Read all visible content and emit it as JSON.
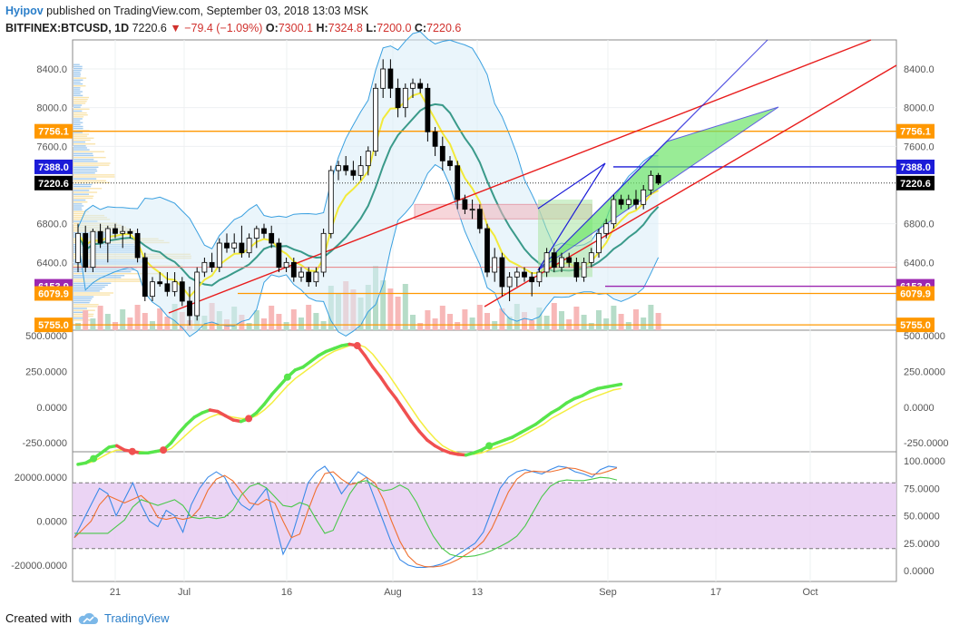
{
  "header": {
    "author": "Hyipov",
    "published": "published on TradingView.com, September 03, 2018 13:03 MSK",
    "symbol": "BITFINEX:BTCUSD, 1D",
    "last": "7220.6",
    "change": "−79.4 (−1.09%)",
    "o_label": "O:",
    "o": "7300.1",
    "h_label": "H:",
    "h": "7324.8",
    "l_label": "L:",
    "l": "7200.0",
    "c_label": "C:",
    "c": "7220.6"
  },
  "footer": {
    "created_with": "Created with",
    "brand": "TradingView"
  },
  "colors": {
    "up": "#ffffff",
    "down": "#000000",
    "orange": "#ff9800",
    "blue": "#1c1cd8",
    "purple": "#9c27b0",
    "red": "#e81c1c",
    "green": "#57e54b",
    "yellow": "#f4f020"
  },
  "chart_data": [
    {
      "type": "candlestick",
      "title": "BITFINEX:BTCUSD, 1D",
      "ylim": [
        5700,
        8700
      ],
      "y_ticks": [
        "8400.0",
        "8000.0",
        "7600.0",
        "6800.0",
        "6400.0"
      ],
      "x_ticks": [
        "21",
        "Jul",
        "16",
        "Aug",
        "13",
        "Sep",
        "17",
        "Oct"
      ],
      "price_labels": [
        {
          "value": 7756.1,
          "text": "7756.1",
          "color": "#ff9800"
        },
        {
          "value": 7388.0,
          "text": "7388.0",
          "color": "#1c1cd8"
        },
        {
          "value": 7220.6,
          "text": "7220.6",
          "color": "#000000"
        },
        {
          "value": 6153.9,
          "text": "6153.9",
          "color": "#9c27b0"
        },
        {
          "value": 6079.9,
          "text": "6079.9",
          "color": "#ff9800"
        },
        {
          "value": 5755.0,
          "text": "5755.0",
          "color": "#ff9800"
        }
      ],
      "candles": [
        {
          "o": 6400,
          "h": 6800,
          "l": 6300,
          "c": 6700
        },
        {
          "o": 6700,
          "h": 6780,
          "l": 6300,
          "c": 6350
        },
        {
          "o": 6350,
          "h": 6750,
          "l": 6300,
          "c": 6720
        },
        {
          "o": 6720,
          "h": 6800,
          "l": 6550,
          "c": 6600
        },
        {
          "o": 6600,
          "h": 6780,
          "l": 6400,
          "c": 6750
        },
        {
          "o": 6750,
          "h": 6800,
          "l": 6650,
          "c": 6700
        },
        {
          "o": 6700,
          "h": 6780,
          "l": 6550,
          "c": 6720
        },
        {
          "o": 6720,
          "h": 6750,
          "l": 6650,
          "c": 6700
        },
        {
          "o": 6700,
          "h": 6750,
          "l": 6400,
          "c": 6450
        },
        {
          "o": 6450,
          "h": 6500,
          "l": 6000,
          "c": 6050
        },
        {
          "o": 6050,
          "h": 6250,
          "l": 6000,
          "c": 6200
        },
        {
          "o": 6200,
          "h": 6300,
          "l": 6150,
          "c": 6180
        },
        {
          "o": 6180,
          "h": 6300,
          "l": 6050,
          "c": 6100
        },
        {
          "o": 6100,
          "h": 6300,
          "l": 6050,
          "c": 6200
        },
        {
          "o": 6200,
          "h": 6250,
          "l": 5950,
          "c": 6000
        },
        {
          "o": 6000,
          "h": 6150,
          "l": 5750,
          "c": 5850
        },
        {
          "o": 5850,
          "h": 6350,
          "l": 5800,
          "c": 6300
        },
        {
          "o": 6300,
          "h": 6450,
          "l": 6250,
          "c": 6400
        },
        {
          "o": 6400,
          "h": 6500,
          "l": 6300,
          "c": 6350
        },
        {
          "o": 6350,
          "h": 6650,
          "l": 6300,
          "c": 6600
        },
        {
          "o": 6600,
          "h": 6700,
          "l": 6500,
          "c": 6550
        },
        {
          "o": 6550,
          "h": 6700,
          "l": 6500,
          "c": 6600
        },
        {
          "o": 6600,
          "h": 6780,
          "l": 6450,
          "c": 6500
        },
        {
          "o": 6500,
          "h": 6700,
          "l": 6450,
          "c": 6650
        },
        {
          "o": 6650,
          "h": 6780,
          "l": 6550,
          "c": 6750
        },
        {
          "o": 6750,
          "h": 6800,
          "l": 6650,
          "c": 6700
        },
        {
          "o": 6700,
          "h": 6780,
          "l": 6550,
          "c": 6600
        },
        {
          "o": 6600,
          "h": 6650,
          "l": 6300,
          "c": 6350
        },
        {
          "o": 6350,
          "h": 6450,
          "l": 6300,
          "c": 6400
        },
        {
          "o": 6400,
          "h": 6450,
          "l": 6200,
          "c": 6250
        },
        {
          "o": 6250,
          "h": 6350,
          "l": 6200,
          "c": 6300
        },
        {
          "o": 6300,
          "h": 6350,
          "l": 6150,
          "c": 6200
        },
        {
          "o": 6200,
          "h": 6350,
          "l": 6150,
          "c": 6300
        },
        {
          "o": 6300,
          "h": 6750,
          "l": 6250,
          "c": 6700
        },
        {
          "o": 6700,
          "h": 7400,
          "l": 6650,
          "c": 7350
        },
        {
          "o": 7350,
          "h": 7450,
          "l": 7250,
          "c": 7400
        },
        {
          "o": 7400,
          "h": 7500,
          "l": 7300,
          "c": 7350
        },
        {
          "o": 7350,
          "h": 7450,
          "l": 7250,
          "c": 7300
        },
        {
          "o": 7300,
          "h": 7500,
          "l": 7250,
          "c": 7400
        },
        {
          "o": 7400,
          "h": 7600,
          "l": 7300,
          "c": 7550
        },
        {
          "o": 7550,
          "h": 8250,
          "l": 7500,
          "c": 8200
        },
        {
          "o": 8200,
          "h": 8500,
          "l": 8100,
          "c": 8400
        },
        {
          "o": 8400,
          "h": 8500,
          "l": 8100,
          "c": 8200
        },
        {
          "o": 8200,
          "h": 8300,
          "l": 7900,
          "c": 8000
        },
        {
          "o": 8000,
          "h": 8250,
          "l": 7900,
          "c": 8200
        },
        {
          "o": 8200,
          "h": 8300,
          "l": 8100,
          "c": 8250
        },
        {
          "o": 8250,
          "h": 8300,
          "l": 8150,
          "c": 8200
        },
        {
          "o": 8200,
          "h": 8250,
          "l": 7650,
          "c": 7750
        },
        {
          "o": 7750,
          "h": 7800,
          "l": 7500,
          "c": 7600
        },
        {
          "o": 7600,
          "h": 7700,
          "l": 7350,
          "c": 7450
        },
        {
          "o": 7450,
          "h": 7500,
          "l": 7350,
          "c": 7400
        },
        {
          "o": 7400,
          "h": 7450,
          "l": 6950,
          "c": 7050
        },
        {
          "o": 7050,
          "h": 7100,
          "l": 6900,
          "c": 6950
        },
        {
          "o": 6950,
          "h": 7050,
          "l": 6850,
          "c": 6950
        },
        {
          "o": 6950,
          "h": 7000,
          "l": 6700,
          "c": 6750
        },
        {
          "o": 6750,
          "h": 6800,
          "l": 6250,
          "c": 6300
        },
        {
          "o": 6300,
          "h": 6550,
          "l": 6200,
          "c": 6450
        },
        {
          "o": 6450,
          "h": 6500,
          "l": 6050,
          "c": 6150
        },
        {
          "o": 6150,
          "h": 6300,
          "l": 6000,
          "c": 6250
        },
        {
          "o": 6250,
          "h": 6350,
          "l": 6150,
          "c": 6300
        },
        {
          "o": 6300,
          "h": 6350,
          "l": 6200,
          "c": 6250
        },
        {
          "o": 6250,
          "h": 6300,
          "l": 6050,
          "c": 6200
        },
        {
          "o": 6200,
          "h": 6350,
          "l": 6150,
          "c": 6300
        },
        {
          "o": 6300,
          "h": 6550,
          "l": 6250,
          "c": 6500
        },
        {
          "o": 6500,
          "h": 6550,
          "l": 6300,
          "c": 6350
        },
        {
          "o": 6350,
          "h": 6500,
          "l": 6300,
          "c": 6450
        },
        {
          "o": 6450,
          "h": 6500,
          "l": 6350,
          "c": 6400
        },
        {
          "o": 6400,
          "h": 6450,
          "l": 6200,
          "c": 6250
        },
        {
          "o": 6250,
          "h": 6450,
          "l": 6200,
          "c": 6400
        },
        {
          "o": 6400,
          "h": 6550,
          "l": 6350,
          "c": 6500
        },
        {
          "o": 6500,
          "h": 6750,
          "l": 6450,
          "c": 6700
        },
        {
          "o": 6700,
          "h": 6850,
          "l": 6650,
          "c": 6800
        },
        {
          "o": 6800,
          "h": 7100,
          "l": 6750,
          "c": 7050
        },
        {
          "o": 7050,
          "h": 7100,
          "l": 6950,
          "c": 7000
        },
        {
          "o": 7000,
          "h": 7100,
          "l": 6950,
          "c": 7050
        },
        {
          "o": 7050,
          "h": 7150,
          "l": 6950,
          "c": 7000
        },
        {
          "o": 7000,
          "h": 7200,
          "l": 6950,
          "c": 7150
        },
        {
          "o": 7150,
          "h": 7350,
          "l": 7100,
          "c": 7300
        },
        {
          "o": 7300,
          "h": 7325,
          "l": 7200,
          "c": 7220
        }
      ]
    },
    {
      "type": "line",
      "ylim": [
        -350,
        500
      ],
      "y_ticks": [
        "500.0000",
        "250.0000",
        "0.0000",
        "-250.0000"
      ],
      "series": [
        {
          "values": [
            -400,
            -390,
            -360,
            -320,
            -280,
            -270,
            -300,
            -310,
            -320,
            -320,
            -310,
            -300,
            -250,
            -180,
            -120,
            -70,
            -40,
            -20,
            -30,
            -60,
            -90,
            -100,
            -80,
            -40,
            20,
            90,
            150,
            210,
            260,
            280,
            320,
            360,
            390,
            410,
            430,
            440,
            430,
            360,
            280,
            210,
            130,
            60,
            -20,
            -100,
            -170,
            -230,
            -270,
            -300,
            -320,
            -330,
            -335,
            -320,
            -300,
            -270,
            -250,
            -230,
            -210,
            -180,
            -150,
            -120,
            -80,
            -40,
            -10,
            30,
            60,
            80,
            110,
            130,
            140,
            150,
            160
          ]
        },
        {
          "values": [
            -400,
            -395,
            -380,
            -350,
            -320,
            -300,
            -300,
            -305,
            -310,
            -315,
            -315,
            -310,
            -290,
            -240,
            -190,
            -140,
            -100,
            -70,
            -50,
            -60,
            -70,
            -80,
            -80,
            -60,
            -20,
            30,
            90,
            150,
            200,
            240,
            280,
            320,
            360,
            390,
            410,
            430,
            440,
            420,
            370,
            300,
            230,
            150,
            70,
            -10,
            -90,
            -160,
            -220,
            -270,
            -300,
            -320,
            -330,
            -330,
            -320,
            -300,
            -280,
            -260,
            -240,
            -210,
            -180,
            -150,
            -120,
            -80,
            -50,
            -20,
            10,
            40,
            60,
            80,
            100,
            120,
            130
          ]
        }
      ]
    },
    {
      "type": "line",
      "ylim_left": [
        -25000,
        25000
      ],
      "y_ticks_left": [
        "20000.0000",
        "0.0000",
        "-20000.0000"
      ],
      "ylim_right": [
        0,
        100
      ],
      "y_ticks_right": [
        "100.0000",
        "75.0000",
        "50.0000",
        "25.0000",
        "0.0000"
      ],
      "band": [
        20,
        80
      ]
    }
  ]
}
